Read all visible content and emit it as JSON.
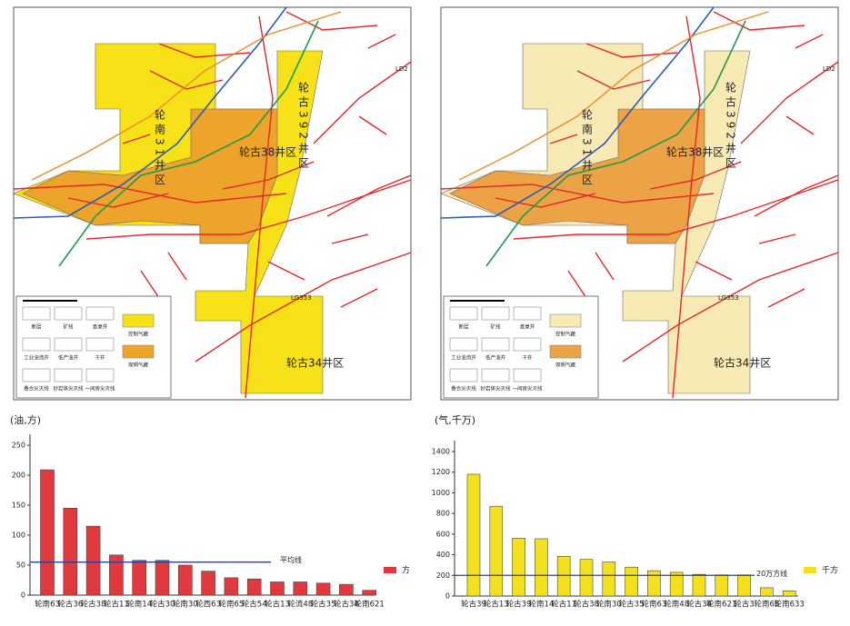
{
  "maps": [
    {
      "regions": [
        "轮南31井区",
        "轮古38井区",
        "轮古392井区",
        "轮古34井区"
      ],
      "wells": [
        "LD2",
        "LG353"
      ],
      "legend": [
        "断层",
        "矿线",
        "直录井",
        "工业油流井",
        "低产油井",
        "干井",
        "叠合尖灭线",
        "砂岩体尖灭线",
        "一间房尖灭线",
        "控制气藏",
        "探明气藏"
      ]
    },
    {
      "regions": [
        "轮南31井区",
        "轮古38井区",
        "轮古392井区",
        "轮古34井区"
      ],
      "wells": [
        "LD2",
        "LG353"
      ],
      "legend": [
        "断层",
        "矿线",
        "直录井",
        "工业油流井",
        "低产油井",
        "干井",
        "叠合尖灭线",
        "砂岩体尖灭线",
        "一间房尖灭线",
        "控制气藏",
        "探明气藏"
      ]
    }
  ],
  "chart_data": [
    {
      "type": "bar",
      "y_label": "(油,方)",
      "categories": [
        "轮南63",
        "轮古36",
        "轮古38",
        "轮古11",
        "轮南14",
        "轮古30",
        "轮南30",
        "轮西63",
        "轮南65",
        "轮古54",
        "轮古13",
        "轮流48",
        "轮古35",
        "轮古34",
        "轮南621"
      ],
      "series": [
        {
          "name": "方",
          "color": "#e03a3e",
          "values": [
            209,
            145,
            115,
            67,
            58,
            58,
            50,
            40,
            29,
            27,
            22,
            22,
            20,
            18,
            8
          ]
        }
      ],
      "ylim": [
        0,
        250
      ],
      "yticks": [
        0,
        50,
        100,
        150,
        200,
        250
      ],
      "hline": {
        "value": 55,
        "label": "平均线",
        "color": "#2b3f95"
      }
    },
    {
      "type": "bar",
      "y_label": "(气,千万)",
      "categories": [
        "轮古39",
        "轮古13",
        "轮古39",
        "轮南14",
        "轮古11",
        "轮古38",
        "轮南30",
        "轮古35",
        "轮南63",
        "轮南48",
        "轮古34",
        "轮南621",
        "轮古3",
        "轮南65",
        "轮南633"
      ],
      "series": [
        {
          "name": "千方",
          "color": "#f2e11c",
          "values": [
            1180,
            870,
            560,
            555,
            385,
            355,
            330,
            280,
            245,
            230,
            210,
            205,
            205,
            80,
            50
          ]
        }
      ],
      "ylim": [
        0,
        1400
      ],
      "yticks": [
        0,
        200,
        400,
        600,
        800,
        1000,
        1200,
        1400
      ],
      "hline": {
        "value": 200,
        "label": "20万方线",
        "color": "#2b3f95"
      }
    }
  ]
}
